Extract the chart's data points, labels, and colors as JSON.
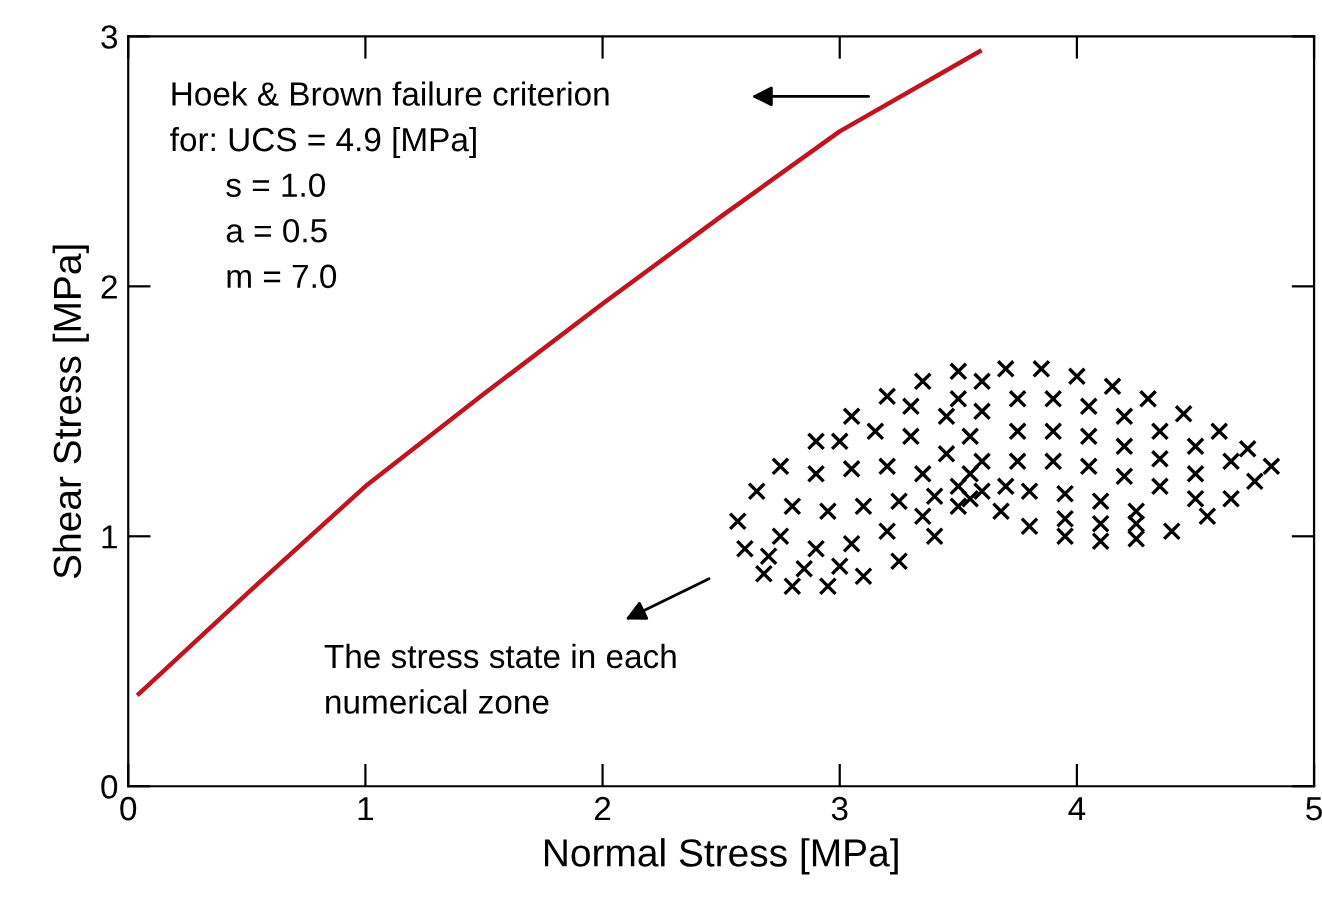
{
  "chart_data": {
    "type": "line",
    "xlabel": "Normal Stress [MPa]",
    "ylabel": "Shear Stress [MPa]",
    "xlim": [
      0,
      5
    ],
    "ylim": [
      0,
      3
    ],
    "xticks": [
      0,
      1,
      2,
      3,
      4,
      5
    ],
    "yticks": [
      0,
      1,
      2,
      3
    ],
    "grid": false,
    "legend": false,
    "annotations": [
      "Hoek & Brown failure criterion\nfor: UCS = 4.9 [MPa]\n      s = 1.0\n      a = 0.5\n      m = 7.0",
      "The stress state in each\nnumerical zone"
    ],
    "series": [
      {
        "color": "#c0141e",
        "line_style": "solid",
        "marker": "none",
        "x": [
          0.045,
          0.5,
          1,
          1.5,
          2,
          2.5,
          3,
          3.59
        ],
        "values": [
          0.37,
          0.77,
          1.2,
          1.57,
          1.93,
          2.28,
          2.62,
          2.94
        ]
      },
      {
        "type": "scatter",
        "color": "#000000",
        "marker": "cross",
        "x": [
          2.57,
          2.6,
          2.68,
          2.8,
          2.95,
          3.1,
          3.25,
          3.4,
          3.5,
          2.65,
          2.75,
          2.9,
          3.05,
          3.2,
          3.35,
          3.5,
          2.75,
          2.9,
          3.05,
          3.2,
          3.35,
          2.8,
          2.95,
          3.1,
          3.25,
          3.4,
          2.9,
          3.05,
          3.2,
          3.35,
          3.0,
          3.15,
          3.3,
          3.45,
          3.3,
          3.45,
          2.7,
          2.85,
          3.0,
          3.5,
          3.55,
          3.6,
          3.55,
          3.6,
          3.5,
          3.6,
          3.55,
          3.6,
          3.7,
          3.85,
          4.0,
          4.15,
          4.3,
          4.45,
          4.6,
          4.72,
          4.82,
          4.75,
          4.65,
          4.55,
          4.4,
          4.25,
          4.1,
          3.95,
          3.8,
          3.68,
          3.75,
          3.9,
          4.05,
          4.2,
          4.35,
          4.5,
          4.65,
          3.75,
          3.9,
          4.05,
          4.2,
          4.35,
          4.5,
          3.75,
          3.9,
          4.05,
          4.2,
          4.35,
          4.5,
          3.8,
          3.95,
          4.1,
          4.25,
          3.95,
          4.1,
          4.25,
          3.7
        ],
        "values": [
          1.06,
          0.95,
          0.85,
          0.8,
          0.8,
          0.84,
          0.9,
          1.0,
          1.12,
          1.18,
          1.28,
          1.38,
          1.48,
          1.56,
          1.62,
          1.66,
          1.0,
          0.95,
          0.97,
          1.02,
          1.08,
          1.12,
          1.1,
          1.12,
          1.14,
          1.16,
          1.25,
          1.27,
          1.28,
          1.25,
          1.38,
          1.42,
          1.4,
          1.33,
          1.52,
          1.48,
          0.92,
          0.87,
          0.88,
          1.2,
          1.25,
          1.3,
          1.4,
          1.5,
          1.55,
          1.62,
          1.15,
          1.18,
          1.67,
          1.67,
          1.64,
          1.6,
          1.55,
          1.49,
          1.42,
          1.35,
          1.28,
          1.22,
          1.15,
          1.08,
          1.02,
          0.99,
          0.98,
          1.0,
          1.04,
          1.1,
          1.55,
          1.55,
          1.52,
          1.48,
          1.42,
          1.36,
          1.3,
          1.42,
          1.42,
          1.4,
          1.36,
          1.31,
          1.25,
          1.3,
          1.3,
          1.28,
          1.24,
          1.2,
          1.15,
          1.18,
          1.17,
          1.14,
          1.1,
          1.07,
          1.05,
          1.05,
          1.2
        ]
      }
    ]
  }
}
